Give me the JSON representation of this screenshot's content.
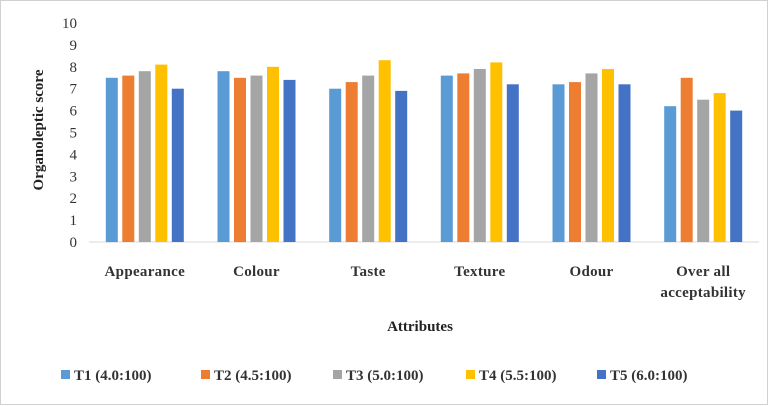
{
  "chart_data": {
    "type": "bar",
    "title": "",
    "xlabel": "Attributes",
    "ylabel": "Organoleptic score",
    "ylim": [
      0,
      10
    ],
    "yticks": [
      "0",
      "1",
      "2",
      "3",
      "4",
      "5",
      "6",
      "7",
      "8",
      "9",
      "10"
    ],
    "grid": false,
    "legend_position": "bottom",
    "categories": [
      [
        "Appearance"
      ],
      [
        "Colour"
      ],
      [
        "Taste"
      ],
      [
        "Texture"
      ],
      [
        "Odour"
      ],
      [
        "Over all",
        "acceptability"
      ]
    ],
    "series": [
      {
        "name": "T1 (4.0:100)",
        "color": "#5b9bd5",
        "values": [
          7.5,
          7.8,
          7.0,
          7.6,
          7.2,
          6.2
        ]
      },
      {
        "name": "T2 (4.5:100)",
        "color": "#ed7d31",
        "values": [
          7.6,
          7.5,
          7.3,
          7.7,
          7.3,
          7.5
        ]
      },
      {
        "name": "T3 (5.0:100)",
        "color": "#a5a5a5",
        "values": [
          7.8,
          7.6,
          7.6,
          7.9,
          7.7,
          6.5
        ]
      },
      {
        "name": "T4 (5.5:100)",
        "color": "#ffc000",
        "values": [
          8.1,
          8.0,
          8.3,
          8.2,
          7.9,
          6.8
        ]
      },
      {
        "name": "T5 (6.0:100)",
        "color": "#4472c4",
        "values": [
          7.0,
          7.4,
          6.9,
          7.2,
          7.2,
          6.0
        ]
      }
    ]
  }
}
